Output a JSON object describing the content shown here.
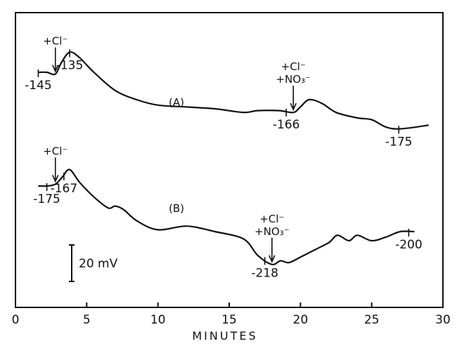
{
  "chart_data": {
    "type": "line",
    "title": "",
    "xlabel": "MINUTES",
    "ylabel": "",
    "xlim": [
      0,
      30
    ],
    "x_ticks": [
      "0",
      "5",
      "10",
      "15",
      "20",
      "25",
      "30"
    ],
    "y_axis_visible": false,
    "grid": false,
    "legend": "none",
    "scale_bar": {
      "label": "20 mV",
      "value_mV": 20
    },
    "series": [
      {
        "name": "(A)",
        "x_min": [
          1.6,
          2.2,
          2.8,
          3.2,
          3.8,
          4.5,
          5.5,
          7.0,
          8.5,
          10.0,
          12.0,
          14.0,
          16.0,
          17.0,
          18.5,
          19.5,
          20.0,
          20.6,
          21.5,
          22.5,
          24.0,
          25.0,
          26.0,
          27.0,
          29.0
        ],
        "mV": [
          -145,
          -145,
          -146,
          -140,
          -134,
          -137,
          -145,
          -155,
          -160,
          -163,
          -164,
          -165,
          -167,
          -166,
          -166,
          -167,
          -164,
          -160,
          -162,
          -167,
          -170,
          -171,
          -175,
          -176,
          -174
        ]
      },
      {
        "name": "(B)",
        "x_min": [
          1.6,
          2.2,
          2.8,
          3.3,
          3.8,
          4.5,
          5.5,
          6.5,
          7.0,
          7.6,
          8.5,
          10.0,
          12.0,
          14.0,
          16.0,
          17.0,
          18.0,
          18.6,
          19.2,
          20.0,
          21.0,
          22.0,
          22.6,
          23.4,
          24.0,
          25.0,
          26.0,
          27.0,
          28.0
        ],
        "mV": [
          -175,
          -175,
          -174,
          -170,
          -166,
          -173,
          -181,
          -187,
          -186,
          -188,
          -194,
          -199,
          -197,
          -200,
          -204,
          -213,
          -218,
          -216,
          -217,
          -214,
          -210,
          -206,
          -202,
          -205,
          -202,
          -205,
          -203,
          -200,
          -200
        ]
      }
    ],
    "annotations": [
      {
        "series": "(A)",
        "text": "+Cl⁻",
        "x": 2.8,
        "arrow": true
      },
      {
        "series": "(A)",
        "text": "+Cl⁻ +NO₃⁻",
        "x": 19.5,
        "arrow": true
      },
      {
        "series": "(B)",
        "text": "+Cl⁻",
        "x": 2.8,
        "arrow": true
      },
      {
        "series": "(B)",
        "text": "+Cl⁻ +NO₃⁻",
        "x": 18.0,
        "arrow": true
      }
    ],
    "value_labels": [
      {
        "series": "(A)",
        "text": "-145",
        "x": 1.6
      },
      {
        "series": "(A)",
        "text": "-135",
        "x": 3.8
      },
      {
        "series": "(A)",
        "text": "-166",
        "x": 19.0
      },
      {
        "series": "(A)",
        "text": "-175",
        "x": 26.9
      },
      {
        "series": "(B)",
        "text": "-175",
        "x": 2.2
      },
      {
        "series": "(B)",
        "text": "-167",
        "x": 3.4
      },
      {
        "series": "(B)",
        "text": "-218",
        "x": 17.5
      },
      {
        "series": "(B)",
        "text": "-200",
        "x": 27.6
      }
    ]
  }
}
